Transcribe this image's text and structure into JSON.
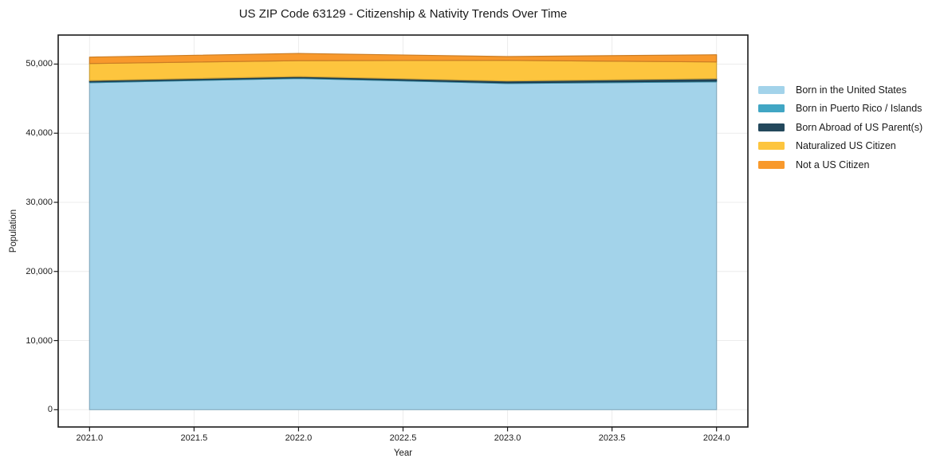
{
  "title": "US ZIP Code 63129 - Citizenship & Nativity Trends Over Time",
  "chart_data": {
    "type": "area",
    "stacked": true,
    "title": "US ZIP Code 63129 - Citizenship & Nativity Trends Over Time",
    "xlabel": "Year",
    "ylabel": "Population",
    "x": [
      2021,
      2022,
      2023,
      2024
    ],
    "series": [
      {
        "name": "Born in the United States",
        "color": "#a3d3ea",
        "values": [
          47310,
          47920,
          47200,
          47430
        ]
      },
      {
        "name": "Born in Puerto Rico / Islands",
        "color": "#41a6c4",
        "values": [
          110,
          100,
          100,
          120
        ]
      },
      {
        "name": "Born Abroad of US Parent(s)",
        "color": "#23485c",
        "values": [
          200,
          180,
          250,
          340
        ]
      },
      {
        "name": "Naturalized US Citizen",
        "color": "#fdc53e",
        "values": [
          2460,
          2300,
          2990,
          2420
        ]
      },
      {
        "name": "Not a US Citizen",
        "color": "#f8992c",
        "values": [
          930,
          1040,
          550,
          1040
        ]
      }
    ],
    "x_ticks": [
      2021.0,
      2021.5,
      2022.0,
      2022.5,
      2023.0,
      2023.5,
      2024.0
    ],
    "x_tick_labels": [
      "2021.0",
      "2021.5",
      "2022.0",
      "2022.5",
      "2023.0",
      "2023.5",
      "2024.0"
    ],
    "y_ticks": [
      0,
      10000,
      20000,
      30000,
      40000,
      50000
    ],
    "y_tick_labels": [
      "0",
      "10,000",
      "20,000",
      "30,000",
      "40,000",
      "50,000"
    ],
    "xlim": [
      2020.85,
      2024.15
    ],
    "ylim": [
      -2500,
      54200
    ],
    "grid": true,
    "legend_position": "right-outside"
  },
  "colors": {
    "grid": "#ececec",
    "spine": "#1a1a1a",
    "text": "#1a1a1a",
    "background": "#ffffff"
  }
}
